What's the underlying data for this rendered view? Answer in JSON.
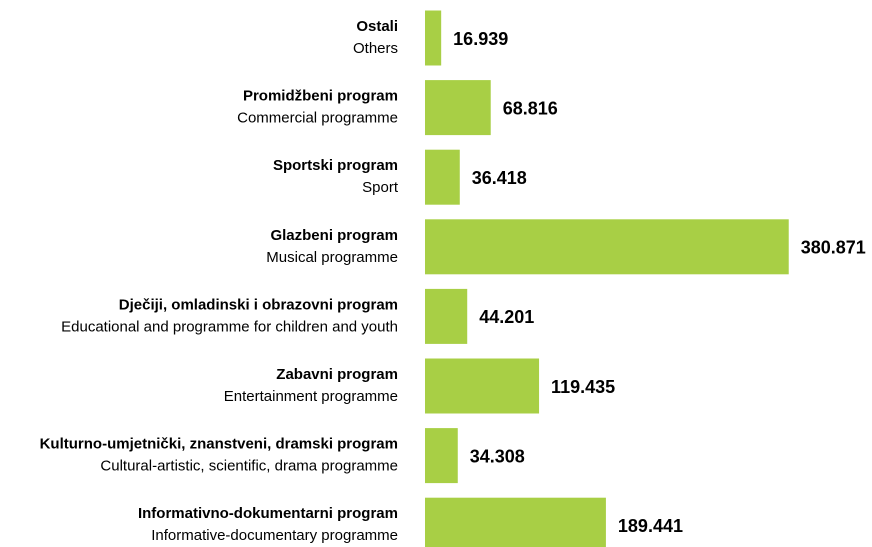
{
  "chart_data": {
    "type": "bar",
    "orientation": "horizontal",
    "categories": [
      "Ostali",
      "Promidžbeni program",
      "Sportski program",
      "Glazbeni program",
      "Dječiji, omladinski i obrazovni program",
      "Zabavni program",
      "Kulturno-umjetnički, znanstveni, dramski program",
      "Informativno-dokumentarni program"
    ],
    "categories_en": [
      "Others",
      "Commercial programme",
      "Sport",
      "Musical programme",
      "Educational and programme for children and youth",
      "Entertainment programme",
      "Cultural-artistic, scientific, drama programme",
      "Informative-documentary programme"
    ],
    "values": [
      16.939,
      68.816,
      36.418,
      380.871,
      44.201,
      119.435,
      34.308,
      189.441
    ],
    "color": "#a8cf45"
  }
}
